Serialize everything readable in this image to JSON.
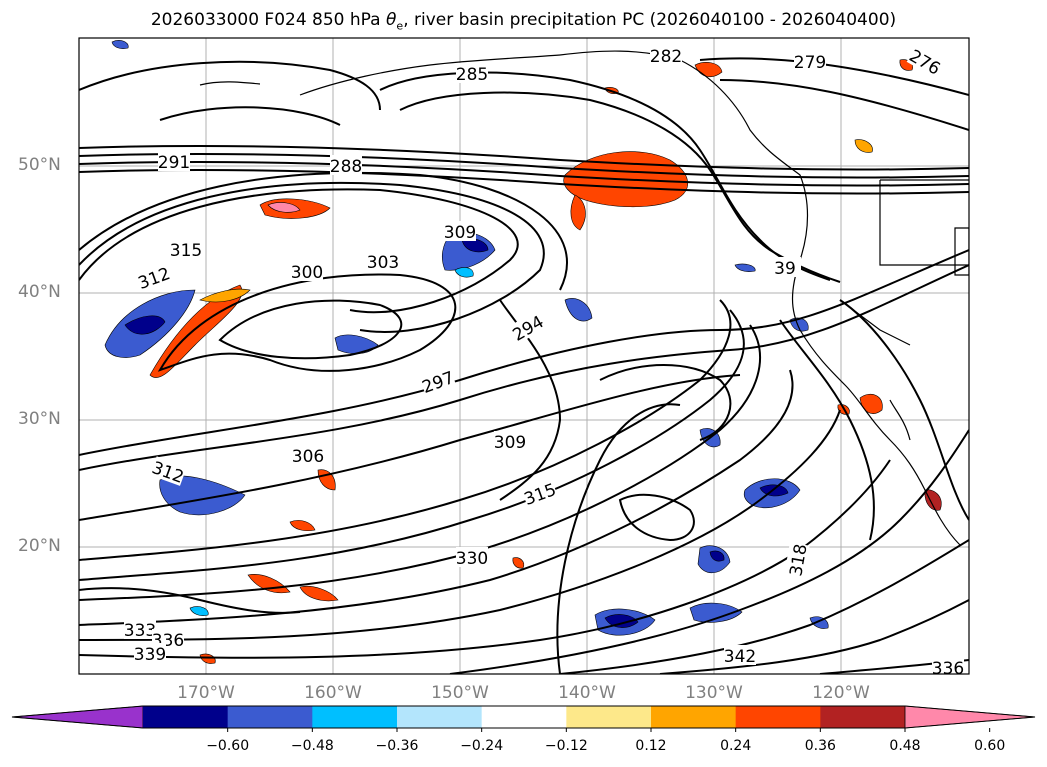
{
  "title_main": "2026033000 F024 850 hPa ",
  "title_theta": "θ",
  "title_sub": "e",
  "title_rest": ", river basin precipitation PC (2026040100 - 2026040400)",
  "lat_labels": [
    "50°N",
    "40°N",
    "30°N",
    "20°N"
  ],
  "lon_labels": [
    "170°W",
    "160°W",
    "150°W",
    "140°W",
    "130°W",
    "120°W"
  ],
  "colorbar": {
    "ticks": [
      "−0.60",
      "−0.48",
      "−0.36",
      "−0.24",
      "−0.12",
      "0.12",
      "0.24",
      "0.36",
      "0.48",
      "0.60"
    ],
    "colors": [
      "#9932cc",
      "#00008b",
      "#3b5bd0",
      "#00bfff",
      "#b3e5fc",
      "#ffffff",
      "#fde88a",
      "#ffa500",
      "#ff4500",
      "#b22222",
      "#ff88aa"
    ]
  },
  "contour_labels": [
    "285",
    "282",
    "279",
    "276",
    "291",
    "288",
    "303",
    "309",
    "300",
    "315",
    "312",
    "294",
    "297",
    "306",
    "309",
    "312",
    "315",
    "318",
    "330",
    "333",
    "336",
    "339",
    "342",
    "336",
    "39"
  ],
  "icons": {
    "basemap": "coastline-map",
    "overlay": "theta-e-contours"
  }
}
